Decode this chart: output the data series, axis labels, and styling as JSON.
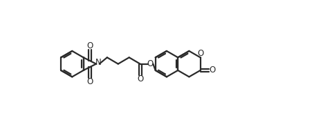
{
  "bg_color": "#ffffff",
  "line_color": "#2a2a2a",
  "line_width": 1.6,
  "figsize": [
    4.81,
    1.87
  ],
  "dpi": 100,
  "xlim": [
    0,
    10
  ],
  "ylim": [
    0,
    4
  ]
}
